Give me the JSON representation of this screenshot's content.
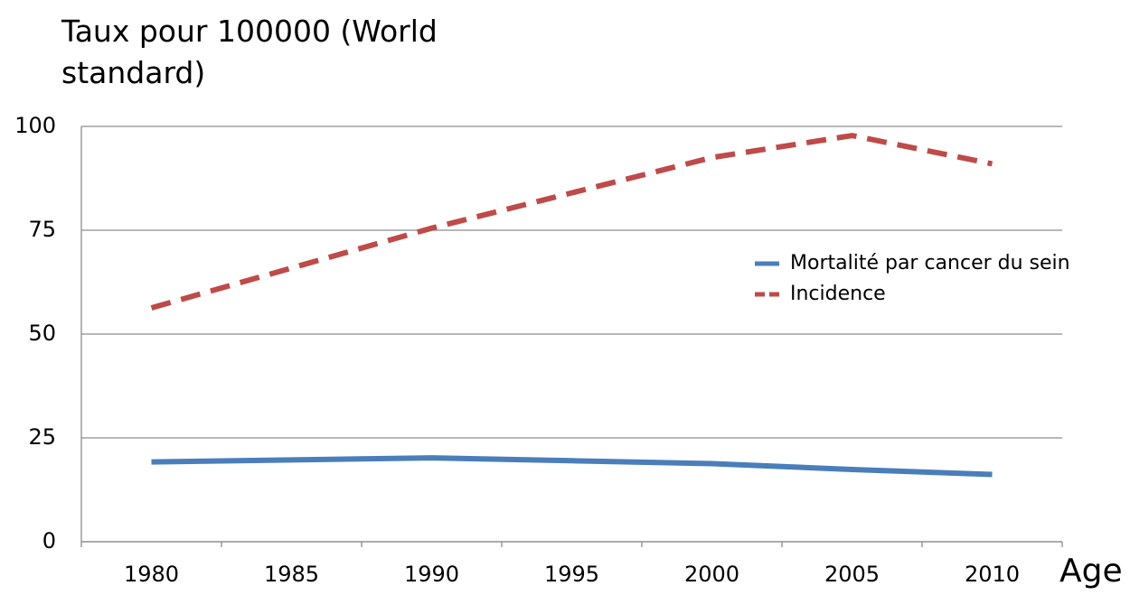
{
  "chart_data": {
    "type": "line",
    "title": "Taux pour 100000 (World standard)",
    "x_label": "Age",
    "categories": [
      "1980",
      "1985",
      "1990",
      "1995",
      "2000",
      "2005",
      "2010"
    ],
    "series": [
      {
        "name": "Mortalité par cancer du sein",
        "color": "#4a7ebb",
        "dash": "solid",
        "values": [
          19.2,
          19.7,
          20.2,
          19.5,
          18.8,
          17.4,
          16.2
        ]
      },
      {
        "name": "Incidence",
        "color": "#be4b48",
        "dash": "dashed",
        "values": [
          56.3,
          65.9,
          75.5,
          84,
          92.5,
          97.8,
          91
        ]
      }
    ],
    "ylim": [
      0,
      100
    ],
    "yticks": [
      0,
      25,
      50,
      75,
      100
    ],
    "grid": true,
    "legend": "right"
  }
}
